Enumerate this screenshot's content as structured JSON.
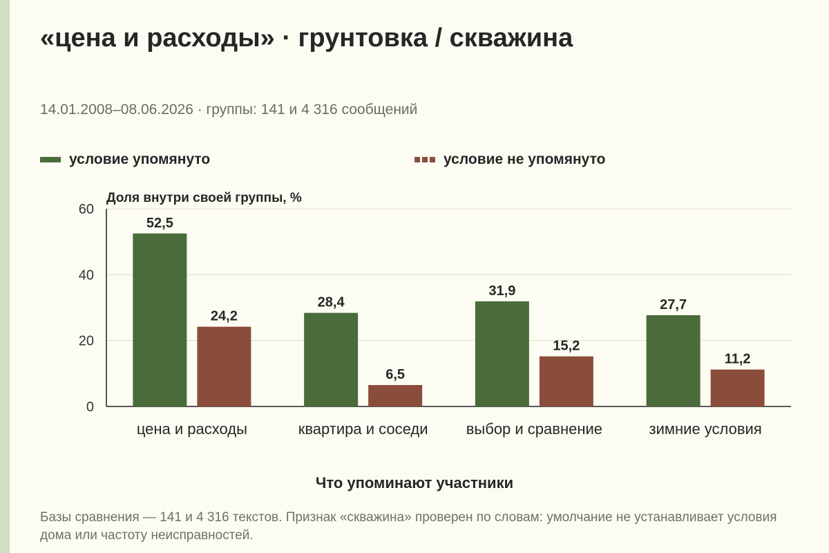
{
  "title": "«цена и расходы» · грунтовка / скважина",
  "subtitle": "14.01.2008–08.06.2026 · группы: 141 и 4 316 сообщений",
  "note": "Базы сравнения — 141 и 4 316 текстов. Признак «скважина» проверен по словам: умолчание не устанавливает условия дома или частоту неисправностей.",
  "colors": {
    "mentioned": "#4a6b3a",
    "not_mentioned": "#8b4d3b",
    "grid": "#dedad0",
    "axis": "#222222"
  },
  "chart_data": {
    "type": "bar",
    "ylabel": "Доля внутри своей группы, %",
    "xlabel": "Что упоминают участники",
    "ylim": [
      0,
      60
    ],
    "yticks": [
      "0",
      "20",
      "40",
      "60"
    ],
    "grid": true,
    "legend_position": "top",
    "categories": [
      "цена и расходы",
      "квартира и соседи",
      "выбор и сравнение",
      "зимние условия"
    ],
    "series": [
      {
        "name": "условие упомянуто",
        "values": [
          52.5,
          28.4,
          31.9,
          27.7
        ],
        "labels": [
          "52,5",
          "28,4",
          "31,9",
          "27,7"
        ]
      },
      {
        "name": "условие не упомянуто",
        "values": [
          24.2,
          6.5,
          15.2,
          11.2
        ],
        "labels": [
          "24,2",
          "6,5",
          "15,2",
          "11,2"
        ]
      }
    ]
  }
}
